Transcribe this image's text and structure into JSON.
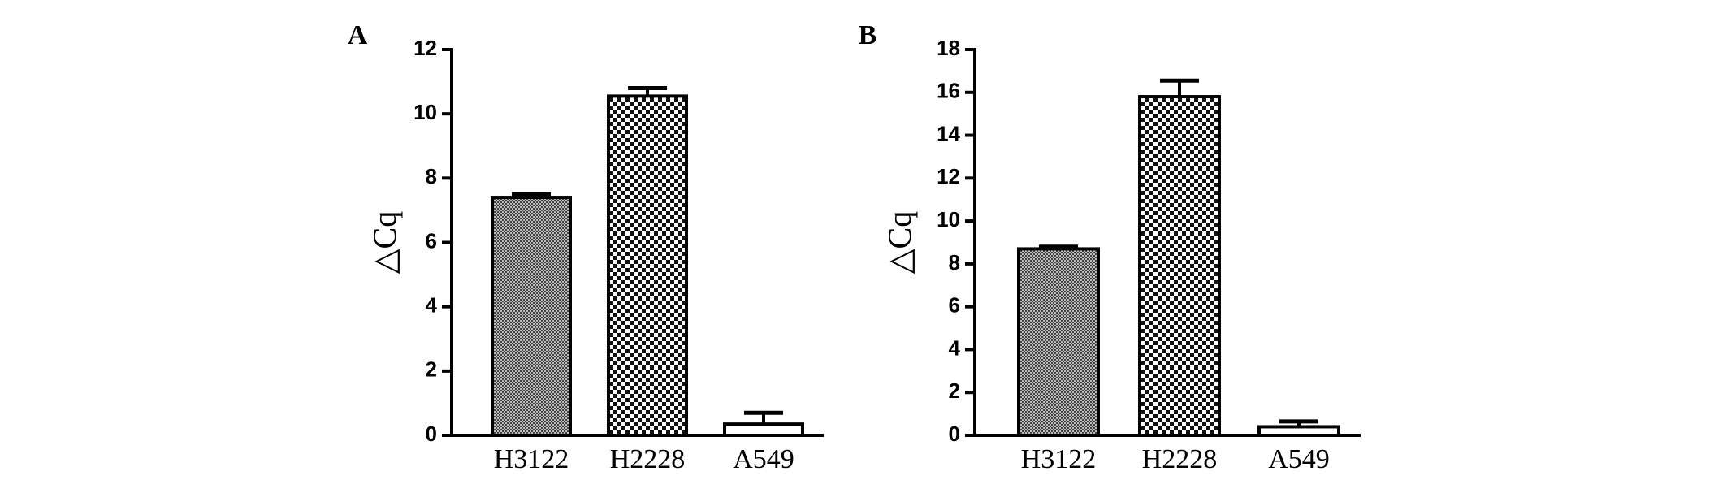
{
  "chart_data": [
    {
      "type": "bar",
      "panel_label": "A",
      "ylabel": "△Cq",
      "categories": [
        "H3122",
        "H2228",
        "A549"
      ],
      "values": [
        7.4,
        10.55,
        0.35
      ],
      "errors": [
        0.1,
        0.25,
        0.35
      ],
      "ylim": [
        0,
        12
      ],
      "yticks": [
        0,
        2,
        4,
        6,
        8,
        10,
        12
      ]
    },
    {
      "type": "bar",
      "panel_label": "B",
      "ylabel": "△Cq",
      "categories": [
        "H3122",
        "H2228",
        "A549"
      ],
      "values": [
        8.7,
        15.8,
        0.4
      ],
      "errors": [
        0.1,
        0.75,
        0.25
      ],
      "ylim": [
        0,
        18
      ],
      "yticks": [
        0,
        2,
        4,
        6,
        8,
        10,
        12,
        14,
        16,
        18
      ]
    }
  ]
}
